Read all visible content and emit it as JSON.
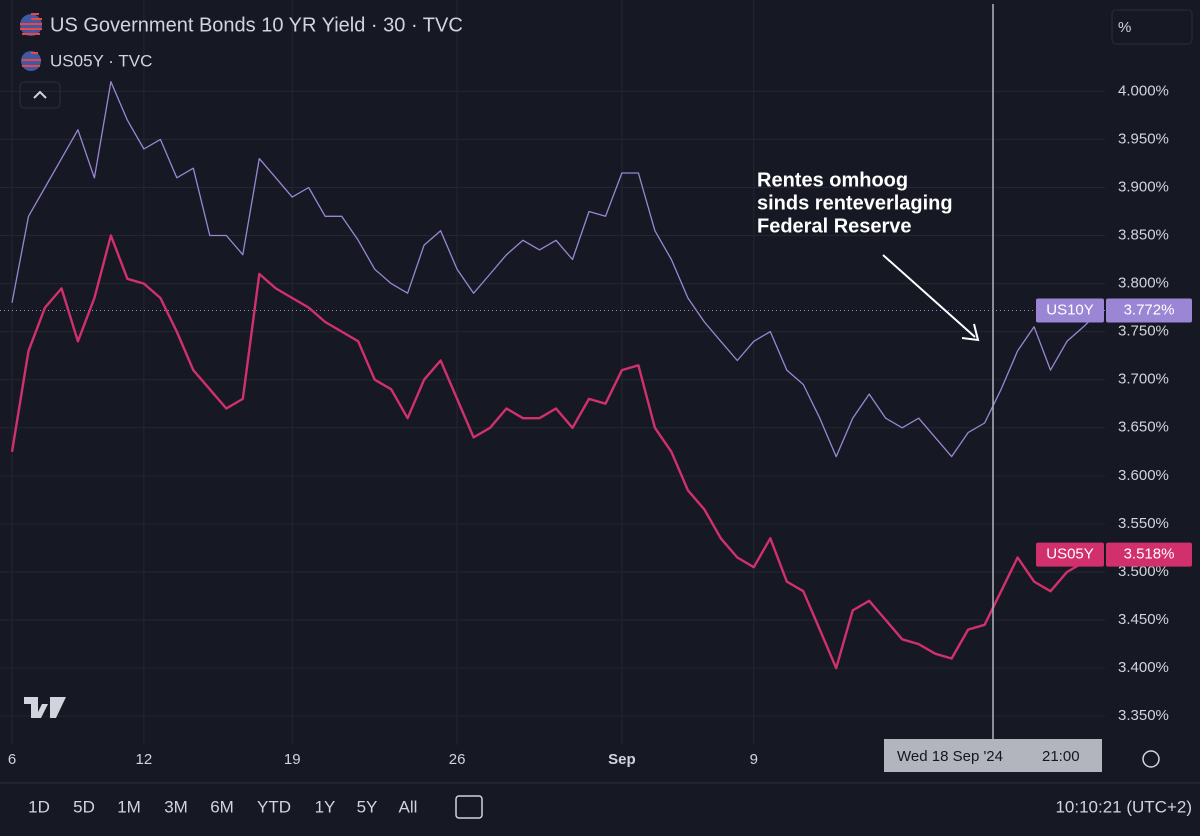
{
  "chart_data": {
    "type": "line",
    "title": "US Government Bonds 10 YR Yield · 30 · TVC",
    "subtitle": "US05Y · TVC",
    "annotation": [
      "Rentes omhoog",
      "sinds renteverlaging",
      "Federal Reserve"
    ],
    "crosshair": {
      "date": "Wed 18 Sep '24",
      "time": "21:00"
    },
    "unit_button": "%",
    "ranges": [
      "1D",
      "5D",
      "1M",
      "3M",
      "6M",
      "YTD",
      "1Y",
      "5Y",
      "All"
    ],
    "clock": "10:10:21 (UTC+2)",
    "categories": [
      "6",
      null,
      null,
      null,
      null,
      null,
      null,
      null,
      "12",
      null,
      null,
      null,
      null,
      null,
      null,
      null,
      null,
      "19",
      null,
      null,
      null,
      null,
      null,
      null,
      null,
      null,
      null,
      "26",
      null,
      null,
      null,
      null,
      null,
      null,
      null,
      null,
      null,
      "Sep",
      null,
      null,
      null,
      null,
      null,
      null,
      null,
      "9",
      null,
      null,
      null,
      null,
      null,
      null,
      null,
      null,
      null,
      null,
      null,
      null,
      null,
      null,
      null,
      null,
      null,
      null,
      null,
      null,
      null
    ],
    "series": [
      {
        "name": "US10Y",
        "color": "#9a86d4",
        "last_label": "3.772%",
        "values": [
          3.78,
          3.87,
          3.9,
          3.93,
          3.96,
          3.91,
          4.01,
          3.97,
          3.94,
          3.95,
          3.91,
          3.92,
          3.85,
          3.85,
          3.83,
          3.93,
          3.91,
          3.89,
          3.9,
          3.87,
          3.87,
          3.845,
          3.815,
          3.8,
          3.79,
          3.84,
          3.855,
          3.815,
          3.79,
          3.81,
          3.83,
          3.845,
          3.835,
          3.845,
          3.825,
          3.875,
          3.87,
          3.915,
          3.915,
          3.855,
          3.825,
          3.785,
          3.76,
          3.74,
          3.72,
          3.74,
          3.75,
          3.71,
          3.695,
          3.66,
          3.62,
          3.66,
          3.685,
          3.66,
          3.65,
          3.66,
          3.64,
          3.62,
          3.645,
          3.655,
          3.69,
          3.73,
          3.755,
          3.71,
          3.74,
          3.755,
          3.772
        ]
      },
      {
        "name": "US05Y",
        "color": "#d1306c",
        "last_label": "3.518%",
        "values": [
          3.625,
          3.73,
          3.775,
          3.795,
          3.74,
          3.785,
          3.85,
          3.805,
          3.8,
          3.785,
          3.75,
          3.71,
          3.69,
          3.67,
          3.68,
          3.81,
          3.795,
          3.785,
          3.775,
          3.76,
          3.75,
          3.74,
          3.7,
          3.69,
          3.66,
          3.7,
          3.72,
          3.68,
          3.64,
          3.65,
          3.67,
          3.66,
          3.66,
          3.67,
          3.65,
          3.68,
          3.675,
          3.71,
          3.715,
          3.65,
          3.625,
          3.585,
          3.565,
          3.535,
          3.515,
          3.505,
          3.535,
          3.49,
          3.48,
          3.44,
          3.4,
          3.46,
          3.47,
          3.45,
          3.43,
          3.425,
          3.415,
          3.41,
          3.44,
          3.445,
          3.48,
          3.515,
          3.49,
          3.48,
          3.5,
          3.51,
          3.518
        ]
      }
    ],
    "ylim": [
      3.32,
      4.095
    ],
    "yticks": [
      {
        "value": 3.35,
        "label": "3.350%"
      },
      {
        "value": 3.4,
        "label": "3.400%"
      },
      {
        "value": 3.45,
        "label": "3.450%"
      },
      {
        "value": 3.5,
        "label": "3.500%"
      },
      {
        "value": 3.55,
        "label": "3.550%"
      },
      {
        "value": 3.6,
        "label": "3.600%"
      },
      {
        "value": 3.65,
        "label": "3.650%"
      },
      {
        "value": 3.7,
        "label": "3.700%"
      },
      {
        "value": 3.75,
        "label": "3.750%"
      },
      {
        "value": 3.8,
        "label": "3.800%"
      },
      {
        "value": 3.85,
        "label": "3.850%"
      },
      {
        "value": 3.9,
        "label": "3.900%"
      },
      {
        "value": 3.95,
        "label": "3.950%"
      },
      {
        "value": 4.0,
        "label": "4.000%"
      }
    ],
    "grid": true
  }
}
